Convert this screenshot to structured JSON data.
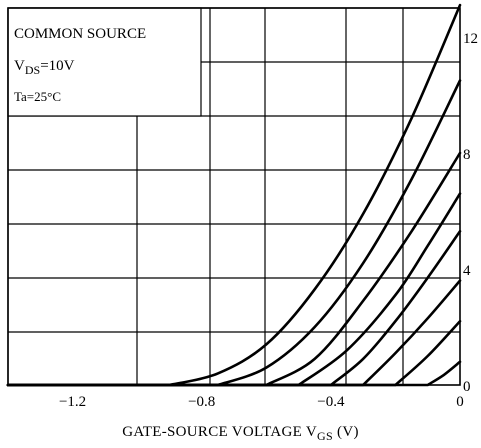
{
  "chart_data": {
    "type": "line",
    "annotation_lines": [
      "COMMON SOURCE",
      "V",
      "DS",
      "=10V",
      "Ta=25°C"
    ],
    "xlabel_parts": [
      "GATE-SOURCE VOLTAGE  V",
      "GS",
      "  (V)"
    ],
    "xlim": [
      -1.4,
      0
    ],
    "ylim": [
      0,
      13
    ],
    "x_tick_values": [
      -1.2,
      -0.8,
      -0.4,
      0
    ],
    "x_tick_labels": [
      "−1.2",
      "−0.8",
      "−0.4",
      "0"
    ],
    "y_tick_values": [
      0,
      4,
      8,
      12
    ],
    "y_tick_labels": [
      "0",
      "4",
      "8",
      "12"
    ],
    "y_axis_side": "right",
    "grid": true,
    "series": [
      {
        "x": [
          -0.9,
          -0.75,
          -0.6,
          -0.45,
          -0.3,
          -0.15,
          0
        ],
        "y": [
          0.0,
          0.4,
          1.4,
          3.3,
          5.9,
          9.2,
          13.1
        ]
      },
      {
        "x": [
          -0.75,
          -0.6,
          -0.45,
          -0.3,
          -0.15,
          0
        ],
        "y": [
          0.0,
          0.6,
          2.0,
          4.2,
          7.1,
          10.5
        ]
      },
      {
        "x": [
          -0.6,
          -0.45,
          -0.3,
          -0.15,
          0
        ],
        "y": [
          0.0,
          0.9,
          2.9,
          5.3,
          8.0
        ]
      },
      {
        "x": [
          -0.5,
          -0.35,
          -0.2,
          -0.1,
          0
        ],
        "y": [
          0.0,
          1.2,
          3.1,
          4.8,
          6.6
        ]
      },
      {
        "x": [
          -0.4,
          -0.3,
          -0.2,
          -0.1,
          0
        ],
        "y": [
          0.0,
          0.9,
          2.2,
          3.7,
          5.3
        ]
      },
      {
        "x": [
          -0.3,
          -0.2,
          -0.1,
          0
        ],
        "y": [
          0.0,
          1.1,
          2.3,
          3.6
        ]
      },
      {
        "x": [
          -0.2,
          -0.1,
          0
        ],
        "y": [
          0.0,
          1.0,
          2.2
        ]
      },
      {
        "x": [
          -0.1,
          -0.05,
          0
        ],
        "y": [
          0.0,
          0.35,
          0.8
        ]
      }
    ]
  }
}
